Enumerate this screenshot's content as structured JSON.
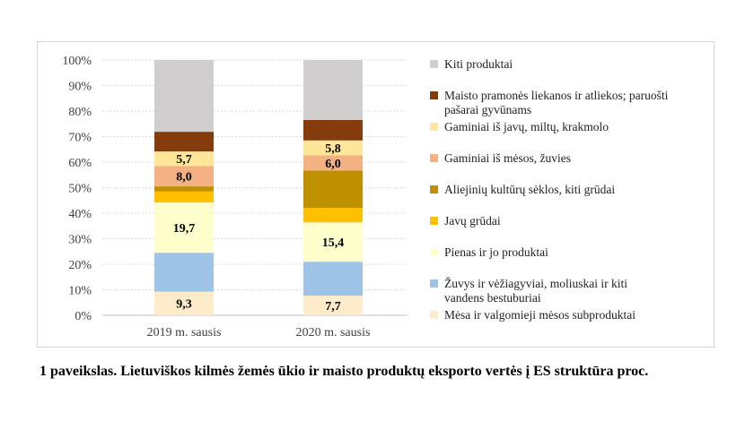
{
  "chart_data": {
    "type": "bar",
    "stacked": true,
    "percent": true,
    "categories": [
      "2019 m. sausis",
      "2020 m. sausis"
    ],
    "y_ticks": [
      "0%",
      "10%",
      "20%",
      "30%",
      "40%",
      "50%",
      "60%",
      "70%",
      "80%",
      "90%",
      "100%"
    ],
    "ylim": [
      0,
      100
    ],
    "grid": true,
    "legend_position": "right",
    "series": [
      {
        "name": "Mėsa ir valgomieji mėsos subproduktai",
        "color": "#fdebc9",
        "values": [
          9.3,
          7.7
        ],
        "labels": [
          "9,3",
          "7,7"
        ]
      },
      {
        "name": "Žuvys ir vėžiagyviai, moliuskai ir kiti vandens bestuburiai",
        "color": "#9dc3e6",
        "values": [
          15.2,
          13.3
        ],
        "labels": [
          "",
          ""
        ]
      },
      {
        "name": "Pienas ir jo produktai",
        "color": "#ffffcc",
        "values": [
          19.7,
          15.4
        ],
        "labels": [
          "19,7",
          "15,4"
        ]
      },
      {
        "name": "Javų grūdai",
        "color": "#ffc000",
        "values": [
          4.3,
          5.7
        ],
        "labels": [
          "",
          ""
        ]
      },
      {
        "name": "Aliejinių kultūrų sėklos, kiti grūdai",
        "color": "#bf9000",
        "values": [
          2.0,
          14.6
        ],
        "labels": [
          "",
          ""
        ]
      },
      {
        "name": "Gaminiai iš mėsos, žuvies",
        "color": "#f4b183",
        "values": [
          8.0,
          6.0
        ],
        "labels": [
          "8,0",
          "6,0"
        ]
      },
      {
        "name": "Gaminiai iš javų, miltų, krakmolo",
        "color": "#ffe699",
        "values": [
          5.7,
          5.8
        ],
        "labels": [
          "5,7",
          "5,8"
        ]
      },
      {
        "name": "Maisto pramonės liekanos ir atliekos; paruošti pašarai gyvūnams",
        "color": "#843c0c",
        "values": [
          7.7,
          8.0
        ],
        "labels": [
          "",
          ""
        ]
      },
      {
        "name": "Kiti produktai",
        "color": "#d0cece",
        "values": [
          28.1,
          23.5
        ],
        "labels": [
          "",
          ""
        ]
      }
    ],
    "legend": [
      {
        "name": "Kiti produktai",
        "lines": [
          "Kiti produktai"
        ],
        "color": "#d0cece"
      },
      {
        "name": "Maisto pramonės liekanos ir atliekos; paruošti pašarai gyvūnams",
        "lines": [
          "Maisto pramonės liekanos ir atliekos; paruošti",
          "pašarai gyvūnams"
        ],
        "color": "#843c0c"
      },
      {
        "name": "Gaminiai iš javų, miltų, krakmolo",
        "lines": [
          "Gaminiai iš javų, miltų, krakmolo"
        ],
        "color": "#ffe699"
      },
      {
        "name": "Gaminiai iš mėsos, žuvies",
        "lines": [
          "Gaminiai iš mėsos, žuvies"
        ],
        "color": "#f4b183"
      },
      {
        "name": "Aliejinių kultūrų sėklos, kiti grūdai",
        "lines": [
          "Aliejinių kultūrų sėklos, kiti grūdai"
        ],
        "color": "#bf9000"
      },
      {
        "name": "Javų grūdai",
        "lines": [
          "Javų grūdai"
        ],
        "color": "#ffc000"
      },
      {
        "name": "Pienas ir jo produktai",
        "lines": [
          "Pienas ir jo produktai"
        ],
        "color": "#ffffcc"
      },
      {
        "name": "Žuvys ir vėžiagyviai, moliuskai ir kiti vandens bestuburiai",
        "lines": [
          "Žuvys ir vėžiagyviai, moliuskai ir kiti",
          "vandens bestuburiai"
        ],
        "color": "#9dc3e6"
      },
      {
        "name": "Mėsa ir valgomieji mėsos subproduktai",
        "lines": [
          "Mėsa ir valgomieji mėsos subproduktai"
        ],
        "color": "#fdebc9"
      }
    ]
  },
  "caption": "1 paveikslas. Lietuviškos kilmės žemės ūkio ir maisto produktų eksporto vertės į ES struktūra proc."
}
